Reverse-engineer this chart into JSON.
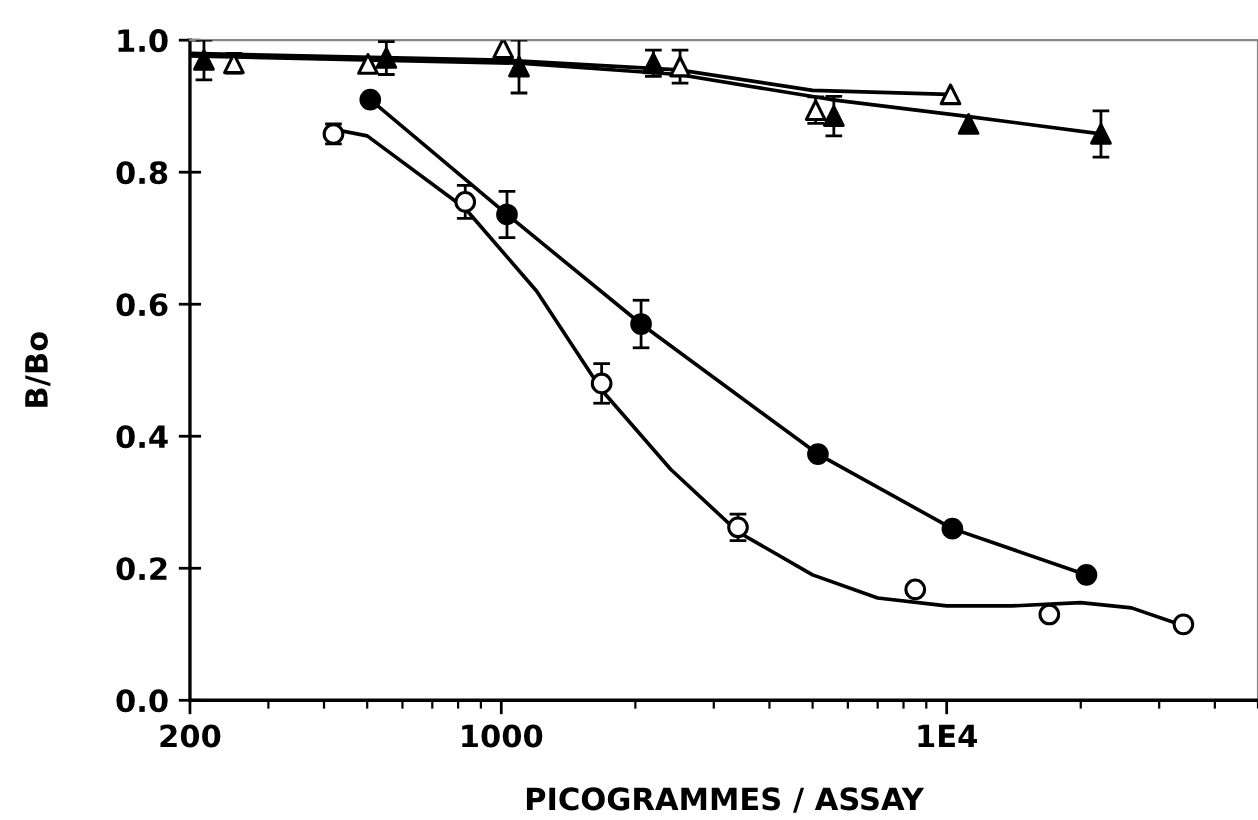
{
  "chart_data": {
    "type": "scatter",
    "xlabel": "PICOGRAMMES / ASSAY",
    "ylabel": "B/Bo",
    "log": "x",
    "xlim": [
      200,
      50000
    ],
    "xticks": [
      200,
      1000,
      {
        "value": 10000,
        "label": "1E4"
      }
    ],
    "ylim": [
      0,
      1.0
    ],
    "yticks": [
      {
        "value": 0,
        "label": "0.0"
      },
      {
        "value": 0.2,
        "label": "0.2"
      },
      {
        "value": 0.4,
        "label": "0.4"
      },
      {
        "value": 0.6,
        "label": "0.6"
      },
      {
        "value": 0.8,
        "label": "0.8"
      },
      {
        "value": 1.0,
        "label": "1.0"
      }
    ],
    "grid": false,
    "series": [
      {
        "type": "line",
        "color": "#000000",
        "marker": "none",
        "line_style": "solid",
        "x": [
          508,
          1030,
          2060,
          5140,
          10300,
          20600
        ],
        "values": [
          0.91,
          0.736,
          0.57,
          0.373,
          0.26,
          0.19
        ]
      },
      {
        "type": "line",
        "color": "#000000",
        "marker": "none",
        "line_style": "solid",
        "x": [
          420,
          500,
          830,
          1200,
          1680,
          2400,
          3400,
          5000,
          7000,
          10000,
          14000,
          20000,
          26000,
          34000
        ],
        "values": [
          0.865,
          0.855,
          0.745,
          0.62,
          0.47,
          0.35,
          0.255,
          0.19,
          0.155,
          0.143,
          0.143,
          0.148,
          0.14,
          0.113
        ]
      },
      {
        "type": "line",
        "color": "#000000",
        "marker": "none",
        "line_style": "solid",
        "x": [
          200,
          1100,
          2500,
          5500,
          11000,
          22200
        ],
        "values": [
          0.976,
          0.965,
          0.948,
          0.91,
          0.885,
          0.858
        ]
      },
      {
        "type": "line",
        "color": "#000000",
        "marker": "none",
        "line_style": "solid",
        "x": [
          200,
          1000,
          2500,
          5000,
          10000
        ],
        "values": [
          0.98,
          0.97,
          0.955,
          0.924,
          0.918
        ]
      },
      {
        "color": "#000000",
        "marker": "circle",
        "x": [
          508,
          1030,
          2060,
          5140,
          10300,
          20600
        ],
        "values": [
          0.91,
          0.736,
          0.57,
          0.373,
          0.26,
          0.19
        ],
        "errors": [
          null,
          0.035,
          0.036,
          null,
          null,
          null
        ]
      },
      {
        "color": "#ffffff",
        "marker": "circle",
        "x": [
          420,
          830,
          1680,
          3400,
          8500,
          17000,
          34000
        ],
        "values": [
          0.858,
          0.755,
          0.48,
          0.262,
          0.168,
          0.13,
          0.115
        ],
        "errors": [
          0.015,
          0.025,
          0.03,
          0.02,
          null,
          null,
          null
        ]
      },
      {
        "color": "#000000",
        "marker": "triangle",
        "x": [
          215,
          552,
          1096,
          2195,
          5580,
          11200,
          22200
        ],
        "values": [
          0.97,
          0.973,
          0.96,
          0.965,
          0.885,
          0.873,
          0.858
        ],
        "errors": [
          0.03,
          0.025,
          0.04,
          0.02,
          0.03,
          null,
          0.035
        ]
      },
      {
        "color": "#ffffff",
        "marker": "triangle",
        "x": [
          251,
          502,
          1010,
          2520,
          5080,
          10200
        ],
        "values": [
          0.965,
          0.964,
          0.988,
          0.96,
          0.894,
          0.918
        ],
        "errors": [
          0.015,
          null,
          null,
          0.025,
          0.02,
          null
        ]
      }
    ]
  }
}
